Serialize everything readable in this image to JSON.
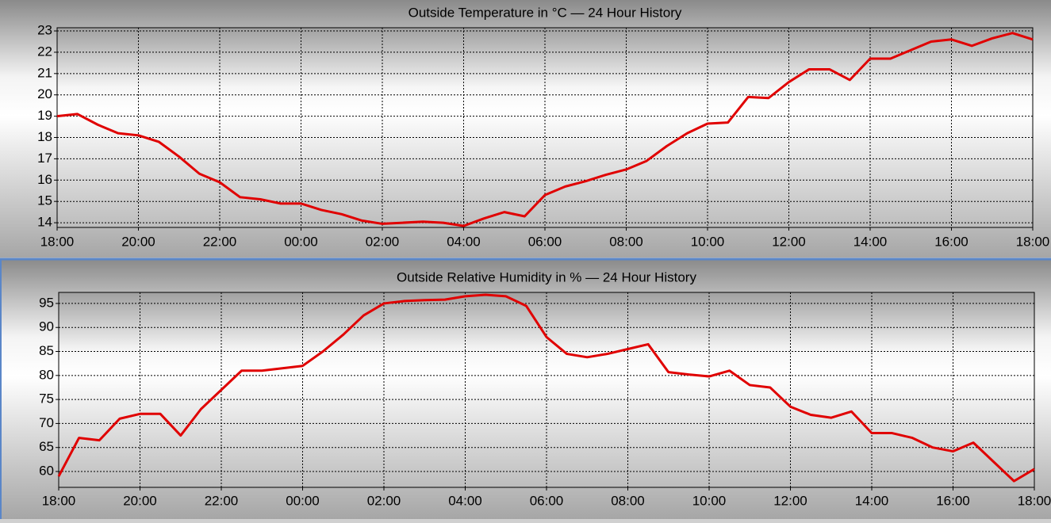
{
  "chart_data": [
    {
      "type": "line",
      "title": "Outside Temperature in °C — 24 Hour History",
      "x": [
        0,
        0.5,
        1,
        1.5,
        2,
        2.5,
        3,
        3.5,
        4,
        4.5,
        5,
        5.5,
        6,
        6.5,
        7,
        7.5,
        8,
        8.5,
        9,
        9.5,
        10,
        10.5,
        11,
        11.5,
        12,
        12.5,
        13,
        13.5,
        14,
        14.5,
        15,
        15.5,
        16,
        16.5,
        17,
        17.5,
        18,
        18.5,
        19,
        19.5,
        20,
        20.5,
        21,
        21.5,
        22,
        22.5,
        23,
        23.5,
        24
      ],
      "series": [
        {
          "name": "Outside Temperature",
          "color": "#e00000",
          "values": [
            19.0,
            19.1,
            18.6,
            18.2,
            18.1,
            17.8,
            17.1,
            16.3,
            15.9,
            15.2,
            15.1,
            14.9,
            14.9,
            14.6,
            14.4,
            14.1,
            13.95,
            14.0,
            14.05,
            14.0,
            13.85,
            14.2,
            14.5,
            14.3,
            15.3,
            15.7,
            15.95,
            16.25,
            16.5,
            16.9,
            17.6,
            18.2,
            18.65,
            18.7,
            19.9,
            19.85,
            20.6,
            21.2,
            21.2,
            20.7,
            21.7,
            21.7,
            22.1,
            22.5,
            22.6,
            22.3,
            22.65,
            22.9,
            22.6
          ]
        }
      ],
      "xlim": [
        0,
        24
      ],
      "xticks": [
        {
          "value": 0,
          "label": "18:00"
        },
        {
          "value": 2,
          "label": "20:00"
        },
        {
          "value": 4,
          "label": "22:00"
        },
        {
          "value": 6,
          "label": "00:00"
        },
        {
          "value": 8,
          "label": "02:00"
        },
        {
          "value": 10,
          "label": "04:00"
        },
        {
          "value": 12,
          "label": "06:00"
        },
        {
          "value": 14,
          "label": "08:00"
        },
        {
          "value": 16,
          "label": "10:00"
        },
        {
          "value": 18,
          "label": "12:00"
        },
        {
          "value": 20,
          "label": "14:00"
        },
        {
          "value": 22,
          "label": "16:00"
        },
        {
          "value": 24,
          "label": "18:00"
        }
      ],
      "ylim": [
        13.78,
        23.15
      ],
      "yticks": [
        14,
        15,
        16,
        17,
        18,
        19,
        20,
        21,
        22,
        23
      ],
      "grid": true
    },
    {
      "type": "line",
      "title": "Outside Relative Humidity in % — 24 Hour History",
      "x": [
        0,
        0.5,
        1,
        1.5,
        2,
        2.5,
        3,
        3.5,
        4,
        4.5,
        5,
        5.5,
        6,
        6.5,
        7,
        7.5,
        8,
        8.5,
        9,
        9.5,
        10,
        10.5,
        11,
        11.5,
        12,
        12.5,
        13,
        13.5,
        14,
        14.5,
        15,
        15.5,
        16,
        16.5,
        17,
        17.5,
        18,
        18.5,
        19,
        19.5,
        20,
        20.5,
        21,
        21.5,
        22,
        22.5,
        23,
        23.5,
        24
      ],
      "series": [
        {
          "name": "Outside Relative Humidity",
          "color": "#e00000",
          "values": [
            59,
            67,
            66.5,
            71,
            72,
            72,
            67.5,
            73,
            77,
            81,
            81,
            81.5,
            82,
            85,
            88.5,
            92.5,
            95,
            95.5,
            95.7,
            95.8,
            96.5,
            96.8,
            96.5,
            94.5,
            88,
            84.5,
            83.8,
            84.5,
            85.5,
            86.5,
            80.7,
            80.2,
            79.8,
            81,
            78,
            77.5,
            73.5,
            71.8,
            71.2,
            72.5,
            68,
            68,
            67,
            65,
            64.2,
            66,
            62,
            58,
            60.5
          ]
        }
      ],
      "xlim": [
        0,
        24
      ],
      "xticks": [
        {
          "value": 0,
          "label": "18:00"
        },
        {
          "value": 2,
          "label": "20:00"
        },
        {
          "value": 4,
          "label": "22:00"
        },
        {
          "value": 6,
          "label": "00:00"
        },
        {
          "value": 8,
          "label": "02:00"
        },
        {
          "value": 10,
          "label": "04:00"
        },
        {
          "value": 12,
          "label": "06:00"
        },
        {
          "value": 14,
          "label": "08:00"
        },
        {
          "value": 16,
          "label": "10:00"
        },
        {
          "value": 18,
          "label": "12:00"
        },
        {
          "value": 20,
          "label": "14:00"
        },
        {
          "value": 22,
          "label": "16:00"
        },
        {
          "value": 24,
          "label": "18:00"
        }
      ],
      "ylim": [
        56.7,
        97.3
      ],
      "yticks": [
        60,
        65,
        70,
        75,
        80,
        85,
        90,
        95
      ],
      "grid": true
    }
  ]
}
